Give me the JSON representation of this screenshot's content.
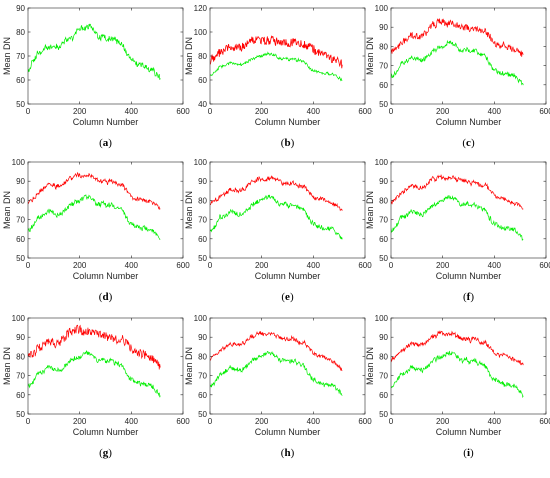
{
  "figure": {
    "panel_letters": [
      "(a)",
      "(b)",
      "(c)",
      "(d)",
      "(e)",
      "(f)",
      "(g)",
      "(h)",
      "(i)"
    ],
    "colors": {
      "raw": "#00ee00",
      "corrected": "#ff0000",
      "axis": "#262626"
    }
  },
  "chart_data": [
    {
      "panel": "(a)",
      "type": "line",
      "xlabel": "Column Number",
      "ylabel": "Mean DN",
      "xlim": [
        0,
        600
      ],
      "ylim": [
        50,
        90
      ],
      "xticks": [
        0,
        200,
        400,
        600
      ],
      "yticks": [
        50,
        60,
        70,
        80,
        90
      ],
      "x": [
        0,
        40,
        80,
        120,
        160,
        200,
        240,
        280,
        320,
        360,
        400,
        440,
        480,
        512
      ],
      "series": [
        {
          "color": "#00ee00",
          "values": [
            64,
            71,
            74,
            73,
            77,
            81,
            82,
            78,
            77,
            75,
            68,
            66,
            64,
            60
          ]
        }
      ]
    },
    {
      "panel": "(b)",
      "type": "line",
      "xlabel": "Column Number",
      "ylabel": "Mean DN",
      "xlim": [
        0,
        600
      ],
      "ylim": [
        40,
        120
      ],
      "xticks": [
        0,
        200,
        400,
        600
      ],
      "yticks": [
        40,
        60,
        80,
        100,
        120
      ],
      "x": [
        0,
        40,
        80,
        120,
        160,
        200,
        240,
        280,
        320,
        360,
        400,
        440,
        480,
        512
      ],
      "series": [
        {
          "color": "#ff0000",
          "values": [
            76,
            83,
            86,
            87,
            91,
            94,
            93,
            92,
            91,
            90,
            86,
            80,
            76,
            72
          ]
        },
        {
          "color": "#00ee00",
          "values": [
            64,
            71,
            74,
            73,
            77,
            81,
            82,
            78,
            77,
            75,
            68,
            66,
            64,
            60
          ]
        }
      ]
    },
    {
      "panel": "(c)",
      "type": "line",
      "xlabel": "Column Number",
      "ylabel": "Mean DN",
      "xlim": [
        0,
        600
      ],
      "ylim": [
        50,
        100
      ],
      "xticks": [
        0,
        200,
        400,
        600
      ],
      "yticks": [
        50,
        60,
        70,
        80,
        90,
        100
      ],
      "x": [
        0,
        40,
        80,
        120,
        160,
        200,
        240,
        280,
        320,
        360,
        400,
        440,
        480,
        512
      ],
      "series": [
        {
          "color": "#ff0000",
          "values": [
            77,
            82,
            85,
            85,
            90,
            93,
            92,
            90,
            89,
            88,
            82,
            80,
            77,
            75
          ]
        },
        {
          "color": "#00ee00",
          "values": [
            64,
            71,
            74,
            73,
            77,
            81,
            82,
            78,
            77,
            75,
            68,
            66,
            64,
            60
          ]
        }
      ]
    },
    {
      "panel": "(d)",
      "type": "line",
      "xlabel": "Column Number",
      "ylabel": "Mean DN",
      "xlim": [
        0,
        600
      ],
      "ylim": [
        50,
        100
      ],
      "xticks": [
        0,
        200,
        400,
        600
      ],
      "yticks": [
        50,
        60,
        70,
        80,
        90,
        100
      ],
      "x": [
        0,
        40,
        80,
        120,
        160,
        200,
        240,
        280,
        320,
        360,
        400,
        440,
        480,
        512
      ],
      "series": [
        {
          "color": "#ff0000",
          "values": [
            78,
            84,
            88,
            87,
            90,
            93,
            93,
            90,
            90,
            88,
            82,
            80,
            78,
            75
          ]
        },
        {
          "color": "#00ee00",
          "values": [
            64,
            71,
            74,
            73,
            77,
            81,
            82,
            78,
            77,
            75,
            68,
            66,
            64,
            60
          ]
        }
      ]
    },
    {
      "panel": "(e)",
      "type": "line",
      "xlabel": "Column Number",
      "ylabel": "Mean DN",
      "xlim": [
        0,
        600
      ],
      "ylim": [
        50,
        100
      ],
      "xticks": [
        0,
        200,
        400,
        600
      ],
      "yticks": [
        50,
        60,
        70,
        80,
        90,
        100
      ],
      "x": [
        0,
        40,
        80,
        120,
        160,
        200,
        240,
        280,
        320,
        360,
        400,
        440,
        480,
        512
      ],
      "series": [
        {
          "color": "#ff0000",
          "values": [
            78,
            82,
            85,
            85,
            88,
            91,
            92,
            89,
            89,
            87,
            82,
            80,
            77,
            74
          ]
        },
        {
          "color": "#00ee00",
          "values": [
            64,
            71,
            74,
            73,
            77,
            81,
            82,
            78,
            77,
            75,
            68,
            66,
            64,
            60
          ]
        }
      ]
    },
    {
      "panel": "(f)",
      "type": "line",
      "xlabel": "Column Number",
      "ylabel": "Mean DN",
      "xlim": [
        0,
        600
      ],
      "ylim": [
        50,
        100
      ],
      "xticks": [
        0,
        200,
        400,
        600
      ],
      "yticks": [
        50,
        60,
        70,
        80,
        90,
        100
      ],
      "x": [
        0,
        40,
        80,
        120,
        160,
        200,
        240,
        280,
        320,
        360,
        400,
        440,
        480,
        512
      ],
      "series": [
        {
          "color": "#ff0000",
          "values": [
            78,
            84,
            87,
            86,
            90,
            92,
            92,
            90,
            89,
            88,
            83,
            80,
            77,
            75
          ]
        },
        {
          "color": "#00ee00",
          "values": [
            64,
            71,
            74,
            73,
            77,
            81,
            82,
            78,
            77,
            75,
            68,
            66,
            64,
            60
          ]
        }
      ]
    },
    {
      "panel": "(g)",
      "type": "line",
      "xlabel": "Column Number",
      "ylabel": "Mean DN",
      "xlim": [
        0,
        600
      ],
      "ylim": [
        50,
        100
      ],
      "xticks": [
        0,
        200,
        400,
        600
      ],
      "yticks": [
        50,
        60,
        70,
        80,
        90,
        100
      ],
      "x": [
        0,
        40,
        80,
        120,
        160,
        200,
        240,
        280,
        320,
        360,
        400,
        440,
        480,
        512
      ],
      "series": [
        {
          "color": "#ff0000",
          "values": [
            79,
            84,
            87,
            87,
            91,
            94,
            93,
            91,
            90,
            89,
            84,
            81,
            78,
            74
          ]
        },
        {
          "color": "#00ee00",
          "values": [
            64,
            71,
            74,
            73,
            77,
            81,
            82,
            78,
            77,
            75,
            68,
            66,
            64,
            60
          ]
        }
      ]
    },
    {
      "panel": "(h)",
      "type": "line",
      "xlabel": "Column Number",
      "ylabel": "Mean DN",
      "xlim": [
        0,
        600
      ],
      "ylim": [
        50,
        100
      ],
      "xticks": [
        0,
        200,
        400,
        600
      ],
      "yticks": [
        50,
        60,
        70,
        80,
        90,
        100
      ],
      "x": [
        0,
        40,
        80,
        120,
        160,
        200,
        240,
        280,
        320,
        360,
        400,
        440,
        480,
        512
      ],
      "series": [
        {
          "color": "#ff0000",
          "values": [
            78,
            83,
            86,
            86,
            89,
            92,
            92,
            89,
            89,
            87,
            82,
            79,
            76,
            72
          ]
        },
        {
          "color": "#00ee00",
          "values": [
            64,
            71,
            74,
            73,
            77,
            81,
            82,
            78,
            77,
            75,
            68,
            66,
            64,
            60
          ]
        }
      ]
    },
    {
      "panel": "(i)",
      "type": "line",
      "xlabel": "Column Number",
      "ylabel": "Mean DN",
      "xlim": [
        0,
        600
      ],
      "ylim": [
        50,
        100
      ],
      "xticks": [
        0,
        200,
        400,
        600
      ],
      "yticks": [
        50,
        60,
        70,
        80,
        90,
        100
      ],
      "x": [
        0,
        40,
        80,
        120,
        160,
        200,
        240,
        280,
        320,
        360,
        400,
        440,
        480,
        512
      ],
      "series": [
        {
          "color": "#ff0000",
          "values": [
            78,
            83,
            86,
            86,
            89,
            92,
            92,
            89,
            89,
            87,
            82,
            80,
            77,
            75
          ]
        },
        {
          "color": "#00ee00",
          "values": [
            64,
            71,
            74,
            73,
            77,
            81,
            82,
            78,
            77,
            75,
            68,
            66,
            64,
            60
          ]
        }
      ]
    }
  ]
}
